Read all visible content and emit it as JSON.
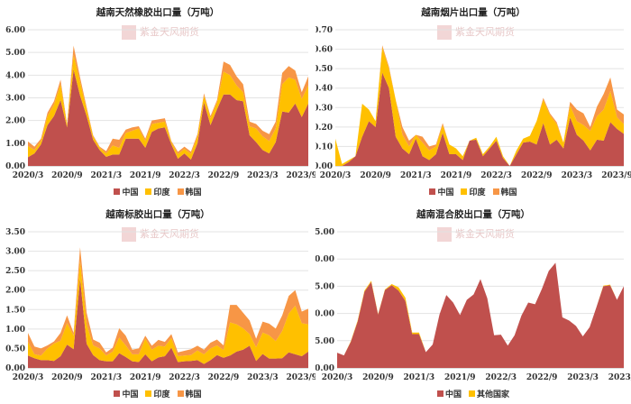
{
  "watermark": "紫金天风期货",
  "colors": {
    "中国": "#C0504D",
    "印度": "#FFC000",
    "韩国": "#F79646",
    "其他国家": "#FFC000"
  },
  "chart_data": [
    {
      "type": "area",
      "stacked": true,
      "title": "越南天然橡胶出口量（万吨）",
      "ylim": [
        0,
        6
      ],
      "yticks": [
        "0.00",
        "1.00",
        "2.00",
        "3.00",
        "4.00",
        "5.00",
        "6.00"
      ],
      "xtick_labels": [
        "2020/3",
        "2020/9",
        "2021/3",
        "2021/9",
        "2022/3",
        "2022/9",
        "2023/3",
        "2023/9"
      ],
      "x_start": "2020/3",
      "x_end": "2023/9",
      "grid": true,
      "legend": "bottom",
      "series": [
        {
          "name": "中国",
          "values": [
            0.38,
            0.55,
            0.95,
            1.8,
            2.2,
            2.9,
            1.7,
            4.25,
            3.1,
            2.2,
            1.15,
            0.7,
            0.4,
            0.5,
            0.5,
            1.2,
            1.2,
            1.2,
            0.8,
            1.5,
            1.65,
            1.7,
            0.95,
            0.32,
            0.55,
            0.28,
            1.0,
            2.8,
            1.8,
            2.5,
            3.15,
            3.15,
            2.9,
            2.85,
            1.35,
            1.05,
            0.7,
            0.55,
            1.05,
            2.4,
            2.35,
            2.75,
            2.15,
            2.75
          ]
        },
        {
          "name": "印度",
          "values": [
            0.5,
            0.15,
            0.15,
            0.4,
            0.5,
            0.7,
            0.1,
            0.65,
            0.6,
            0.3,
            0.15,
            0.1,
            0.15,
            0.4,
            0.3,
            0.25,
            0.35,
            0.45,
            0.3,
            0.35,
            0.25,
            0.25,
            0.1,
            0.2,
            0.2,
            0.25,
            0.3,
            0.3,
            0.3,
            0.3,
            1.0,
            0.85,
            0.65,
            0.4,
            0.4,
            0.6,
            0.6,
            0.55,
            0.6,
            1.2,
            1.55,
            1.05,
            0.8,
            0.8
          ]
        },
        {
          "name": "韩国",
          "values": [
            0.2,
            0.15,
            0.1,
            0.15,
            0.15,
            0.2,
            0.05,
            0.4,
            0.2,
            0.1,
            0.05,
            0.05,
            0.1,
            0.3,
            0.35,
            0.15,
            0.15,
            0.1,
            0.1,
            0.15,
            0.15,
            0.15,
            0.05,
            0.1,
            0.1,
            0.1,
            0.1,
            0.1,
            0.1,
            0.1,
            0.45,
            0.45,
            0.4,
            0.35,
            0.2,
            0.2,
            0.25,
            0.3,
            0.3,
            0.5,
            0.5,
            0.4,
            0.3,
            0.4
          ]
        }
      ]
    },
    {
      "type": "area",
      "stacked": true,
      "title": "越南烟片出口量（万吨）",
      "ylim": [
        0,
        0.7
      ],
      "yticks": [
        "0.00",
        "0.10",
        "0.20",
        "0.30",
        "0.40",
        "0.50",
        "0.60",
        "0.70"
      ],
      "xtick_labels": [
        "2020/3",
        "2020/9",
        "2021/3",
        "2021/9",
        "2022/3",
        "2022/9",
        "2023/3",
        "2023/9"
      ],
      "x_start": "2020/3",
      "x_end": "2023/9",
      "grid": true,
      "legend": "bottom",
      "series": [
        {
          "name": "中国",
          "values": [
            0,
            0,
            0.02,
            0.05,
            0.15,
            0.23,
            0.2,
            0.48,
            0.4,
            0.15,
            0.09,
            0.06,
            0.14,
            0.05,
            0.03,
            0.06,
            0.17,
            0.06,
            0.06,
            0.03,
            0.13,
            0.135,
            0.05,
            0.09,
            0.13,
            0.04,
            0,
            0.06,
            0.12,
            0.125,
            0.11,
            0.22,
            0.11,
            0.135,
            0.09,
            0.25,
            0.16,
            0.13,
            0.08,
            0.135,
            0.13,
            0.225,
            0.19,
            0.165
          ]
        },
        {
          "name": "印度",
          "values": [
            0.14,
            0.01,
            0.01,
            0,
            0.17,
            0.06,
            0.03,
            0.13,
            0.1,
            0.19,
            0.07,
            0.04,
            0.02,
            0.07,
            0.05,
            0.04,
            0.04,
            0.05,
            0.03,
            0.02,
            0,
            0.01,
            0.01,
            0.01,
            0.02,
            0.01,
            0,
            0.02,
            0.02,
            0.03,
            0.12,
            0.12,
            0.15,
            0.08,
            0.03,
            0.06,
            0.07,
            0.08,
            0.1,
            0.12,
            0.16,
            0.16,
            0.06,
            0.05
          ]
        },
        {
          "name": "韩国",
          "values": [
            0,
            0,
            0,
            0,
            0,
            0,
            0,
            0.01,
            0.01,
            0.0,
            0.04,
            0.03,
            0,
            0.03,
            0.02,
            0.01,
            0.01,
            0,
            0,
            0,
            0,
            0,
            0,
            0,
            0,
            0,
            0,
            0,
            0,
            0,
            0,
            0.01,
            0.01,
            0.01,
            0,
            0.02,
            0.06,
            0.06,
            0.02,
            0.05,
            0.08,
            0.07,
            0.04,
            0.05
          ]
        }
      ]
    },
    {
      "type": "area",
      "stacked": true,
      "title": "越南标胶出口量（万吨）",
      "ylim": [
        0,
        3.5
      ],
      "yticks": [
        "0.00",
        "0.50",
        "1.00",
        "1.50",
        "2.00",
        "2.50",
        "3.00",
        "3.50"
      ],
      "xtick_labels": [
        "2020/3",
        "2020/9",
        "2021/3",
        "2021/9",
        "2022/3",
        "2022/9",
        "2023/3",
        "2023/9"
      ],
      "x_start": "2020/3",
      "x_end": "2023/9",
      "grid": true,
      "legend": "bottom",
      "series": [
        {
          "name": "中国",
          "values": [
            0.32,
            0.25,
            0.2,
            0.2,
            0.18,
            0.3,
            0.6,
            0.48,
            2.3,
            0.62,
            0.33,
            0.2,
            0.17,
            0.17,
            0.38,
            0.28,
            0.17,
            0.15,
            0.35,
            0.17,
            0.27,
            0.3,
            0.52,
            0.15,
            0.17,
            0.18,
            0.2,
            0.1,
            0.2,
            0.33,
            0.26,
            0.32,
            0.42,
            0.47,
            0.57,
            0.18,
            0.36,
            0.24,
            0.24,
            0.25,
            0.4,
            0.35,
            0.3,
            0.42
          ]
        },
        {
          "name": "印度",
          "values": [
            0.35,
            0.1,
            0.12,
            0.3,
            0.45,
            0.4,
            0.55,
            0.35,
            0.45,
            0.5,
            0.25,
            0.3,
            0.15,
            0.25,
            0.4,
            0.3,
            0.18,
            0.2,
            0.4,
            0.3,
            0.3,
            0.25,
            0.25,
            0.15,
            0.15,
            0.15,
            0.25,
            0.25,
            0.3,
            0.25,
            0.2,
            0.85,
            0.7,
            0.55,
            0.3,
            0.35,
            0.55,
            0.6,
            0.45,
            0.7,
            1.0,
            1.25,
            0.85,
            0.7
          ]
        },
        {
          "name": "韩国",
          "values": [
            0.23,
            0.2,
            0.18,
            0.08,
            0.05,
            0.2,
            0.2,
            0.07,
            0.35,
            0.3,
            0.15,
            0.15,
            0.08,
            0.1,
            0.24,
            0.25,
            0.12,
            0.15,
            0.08,
            0.1,
            0.15,
            0.12,
            0.1,
            0.1,
            0.12,
            0.15,
            0.12,
            0.12,
            0.15,
            0.15,
            0.12,
            0.45,
            0.5,
            0.4,
            0.35,
            0.22,
            0.28,
            0.3,
            0.32,
            0.4,
            0.45,
            0.4,
            0.3,
            0.4
          ]
        }
      ]
    },
    {
      "type": "area",
      "stacked": true,
      "title": "越南混合胶出口量（万吨）",
      "ylim": [
        0,
        25
      ],
      "yticks": [
        "0.00",
        "5.00",
        "10.00",
        "15.00",
        "20.00",
        "25.00"
      ],
      "xtick_labels": [
        "2020/3",
        "2020/9",
        "2021/3",
        "2021/9",
        "2022/3",
        "2022/9",
        "2023/3",
        "2023/9"
      ],
      "x_start": "2020/3",
      "x_end": "2023/9",
      "grid": true,
      "legend": "bottom",
      "series": [
        {
          "name": "中国",
          "values": [
            2.8,
            2.3,
            4.8,
            8.5,
            14,
            15.8,
            9.8,
            14.3,
            15.2,
            14.2,
            12.3,
            6.2,
            6.2,
            2.9,
            4.3,
            9.8,
            13.4,
            12,
            9.7,
            12.5,
            13.5,
            16.3,
            12.8,
            6,
            6.1,
            4.1,
            6,
            9.6,
            12,
            11.7,
            14.5,
            17.8,
            19.3,
            9.3,
            8.7,
            7.7,
            5.8,
            7.5,
            11.2,
            15,
            15.2,
            12.5,
            15
          ]
        },
        {
          "name": "其他国家",
          "values": [
            0,
            0,
            0.1,
            0.2,
            0.2,
            0.2,
            0.1,
            0.1,
            0.2,
            0.6,
            0.6,
            0.3,
            0.3,
            0,
            0,
            0,
            0,
            0,
            0,
            0,
            0,
            0,
            0,
            0,
            0,
            0,
            0,
            0,
            0,
            0,
            0,
            0,
            0,
            0,
            0,
            0,
            0,
            0,
            0,
            0.1,
            0.1,
            0,
            0
          ]
        }
      ]
    }
  ]
}
